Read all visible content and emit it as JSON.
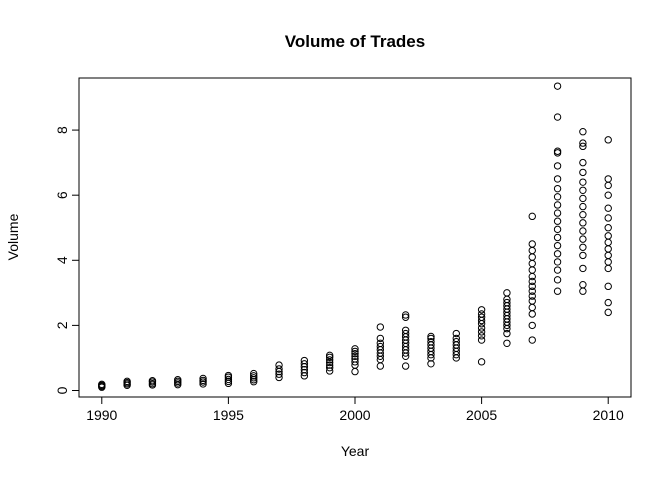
{
  "chart_data": {
    "type": "scatter",
    "title": "Volume of Trades",
    "xlabel": "Year",
    "ylabel": "Volume",
    "xlim": [
      1989.1,
      2010.9
    ],
    "ylim": [
      -0.2,
      9.6
    ],
    "x_ticks": [
      1990,
      1995,
      2000,
      2005,
      2010
    ],
    "y_ticks": [
      0,
      2,
      4,
      6,
      8
    ],
    "grid": false,
    "legend": "none",
    "point_style": "open circle",
    "color": "#000000",
    "series": [
      {
        "points": [
          [
            1990,
            0.1
          ],
          [
            1990,
            0.13
          ],
          [
            1990,
            0.16
          ],
          [
            1990,
            0.19
          ],
          [
            1991,
            0.16
          ],
          [
            1991,
            0.2
          ],
          [
            1991,
            0.24
          ],
          [
            1991,
            0.28
          ],
          [
            1992,
            0.17
          ],
          [
            1992,
            0.21
          ],
          [
            1992,
            0.26
          ],
          [
            1992,
            0.3
          ],
          [
            1993,
            0.18
          ],
          [
            1993,
            0.23
          ],
          [
            1993,
            0.28
          ],
          [
            1993,
            0.33
          ],
          [
            1994,
            0.2
          ],
          [
            1994,
            0.26
          ],
          [
            1994,
            0.31
          ],
          [
            1994,
            0.37
          ],
          [
            1995,
            0.22
          ],
          [
            1995,
            0.28
          ],
          [
            1995,
            0.34
          ],
          [
            1995,
            0.41
          ],
          [
            1995,
            0.46
          ],
          [
            1996,
            0.27
          ],
          [
            1996,
            0.33
          ],
          [
            1996,
            0.39
          ],
          [
            1996,
            0.45
          ],
          [
            1996,
            0.52
          ],
          [
            1997,
            0.4
          ],
          [
            1997,
            0.5
          ],
          [
            1997,
            0.58
          ],
          [
            1997,
            0.66
          ],
          [
            1997,
            0.78
          ],
          [
            1998,
            0.45
          ],
          [
            1998,
            0.55
          ],
          [
            1998,
            0.64
          ],
          [
            1998,
            0.73
          ],
          [
            1998,
            0.82
          ],
          [
            1998,
            0.92
          ],
          [
            1999,
            0.6
          ],
          [
            1999,
            0.7
          ],
          [
            1999,
            0.78
          ],
          [
            1999,
            0.86
          ],
          [
            1999,
            0.94
          ],
          [
            1999,
            1.02
          ],
          [
            1999,
            1.08
          ],
          [
            2000,
            0.58
          ],
          [
            2000,
            0.78
          ],
          [
            2000,
            0.88
          ],
          [
            2000,
            0.97
          ],
          [
            2000,
            1.05
          ],
          [
            2000,
            1.13
          ],
          [
            2000,
            1.2
          ],
          [
            2000,
            1.28
          ],
          [
            2001,
            0.75
          ],
          [
            2001,
            0.95
          ],
          [
            2001,
            1.05
          ],
          [
            2001,
            1.15
          ],
          [
            2001,
            1.25
          ],
          [
            2001,
            1.35
          ],
          [
            2001,
            1.45
          ],
          [
            2001,
            1.6
          ],
          [
            2001,
            1.95
          ],
          [
            2002,
            0.75
          ],
          [
            2002,
            1.05
          ],
          [
            2002,
            1.15
          ],
          [
            2002,
            1.25
          ],
          [
            2002,
            1.35
          ],
          [
            2002,
            1.45
          ],
          [
            2002,
            1.55
          ],
          [
            2002,
            1.65
          ],
          [
            2002,
            1.75
          ],
          [
            2002,
            1.85
          ],
          [
            2002,
            2.25
          ],
          [
            2002,
            2.32
          ],
          [
            2003,
            0.82
          ],
          [
            2003,
            1.0
          ],
          [
            2003,
            1.1
          ],
          [
            2003,
            1.2
          ],
          [
            2003,
            1.3
          ],
          [
            2003,
            1.4
          ],
          [
            2003,
            1.5
          ],
          [
            2003,
            1.6
          ],
          [
            2003,
            1.66
          ],
          [
            2004,
            1.0
          ],
          [
            2004,
            1.1
          ],
          [
            2004,
            1.2
          ],
          [
            2004,
            1.3
          ],
          [
            2004,
            1.4
          ],
          [
            2004,
            1.5
          ],
          [
            2004,
            1.6
          ],
          [
            2004,
            1.75
          ],
          [
            2005,
            0.88
          ],
          [
            2005,
            1.55
          ],
          [
            2005,
            1.68
          ],
          [
            2005,
            1.8
          ],
          [
            2005,
            1.92
          ],
          [
            2005,
            2.05
          ],
          [
            2005,
            2.15
          ],
          [
            2005,
            2.25
          ],
          [
            2005,
            2.35
          ],
          [
            2005,
            2.48
          ],
          [
            2006,
            1.45
          ],
          [
            2006,
            1.75
          ],
          [
            2006,
            1.9
          ],
          [
            2006,
            2.0
          ],
          [
            2006,
            2.1
          ],
          [
            2006,
            2.2
          ],
          [
            2006,
            2.3
          ],
          [
            2006,
            2.4
          ],
          [
            2006,
            2.5
          ],
          [
            2006,
            2.6
          ],
          [
            2006,
            2.7
          ],
          [
            2006,
            2.8
          ],
          [
            2006,
            3.0
          ],
          [
            2007,
            1.55
          ],
          [
            2007,
            2.0
          ],
          [
            2007,
            2.35
          ],
          [
            2007,
            2.55
          ],
          [
            2007,
            2.75
          ],
          [
            2007,
            2.9
          ],
          [
            2007,
            3.05
          ],
          [
            2007,
            3.2
          ],
          [
            2007,
            3.35
          ],
          [
            2007,
            3.5
          ],
          [
            2007,
            3.7
          ],
          [
            2007,
            3.9
          ],
          [
            2007,
            4.1
          ],
          [
            2007,
            4.3
          ],
          [
            2007,
            4.5
          ],
          [
            2007,
            5.35
          ],
          [
            2008,
            3.05
          ],
          [
            2008,
            3.4
          ],
          [
            2008,
            3.7
          ],
          [
            2008,
            3.95
          ],
          [
            2008,
            4.2
          ],
          [
            2008,
            4.45
          ],
          [
            2008,
            4.7
          ],
          [
            2008,
            4.95
          ],
          [
            2008,
            5.2
          ],
          [
            2008,
            5.45
          ],
          [
            2008,
            5.7
          ],
          [
            2008,
            5.95
          ],
          [
            2008,
            6.2
          ],
          [
            2008,
            6.5
          ],
          [
            2008,
            6.9
          ],
          [
            2008,
            7.3
          ],
          [
            2008,
            7.35
          ],
          [
            2008,
            8.4
          ],
          [
            2008,
            9.35
          ],
          [
            2009,
            3.05
          ],
          [
            2009,
            3.25
          ],
          [
            2009,
            3.75
          ],
          [
            2009,
            4.15
          ],
          [
            2009,
            4.4
          ],
          [
            2009,
            4.65
          ],
          [
            2009,
            4.9
          ],
          [
            2009,
            5.15
          ],
          [
            2009,
            5.4
          ],
          [
            2009,
            5.65
          ],
          [
            2009,
            5.9
          ],
          [
            2009,
            6.15
          ],
          [
            2009,
            6.4
          ],
          [
            2009,
            6.7
          ],
          [
            2009,
            7.0
          ],
          [
            2009,
            7.5
          ],
          [
            2009,
            7.6
          ],
          [
            2009,
            7.95
          ],
          [
            2010,
            2.4
          ],
          [
            2010,
            2.7
          ],
          [
            2010,
            3.2
          ],
          [
            2010,
            3.75
          ],
          [
            2010,
            3.95
          ],
          [
            2010,
            4.15
          ],
          [
            2010,
            4.35
          ],
          [
            2010,
            4.55
          ],
          [
            2010,
            4.75
          ],
          [
            2010,
            5.0
          ],
          [
            2010,
            5.3
          ],
          [
            2010,
            5.6
          ],
          [
            2010,
            6.0
          ],
          [
            2010,
            6.3
          ],
          [
            2010,
            6.5
          ],
          [
            2010,
            7.7
          ]
        ]
      }
    ]
  }
}
